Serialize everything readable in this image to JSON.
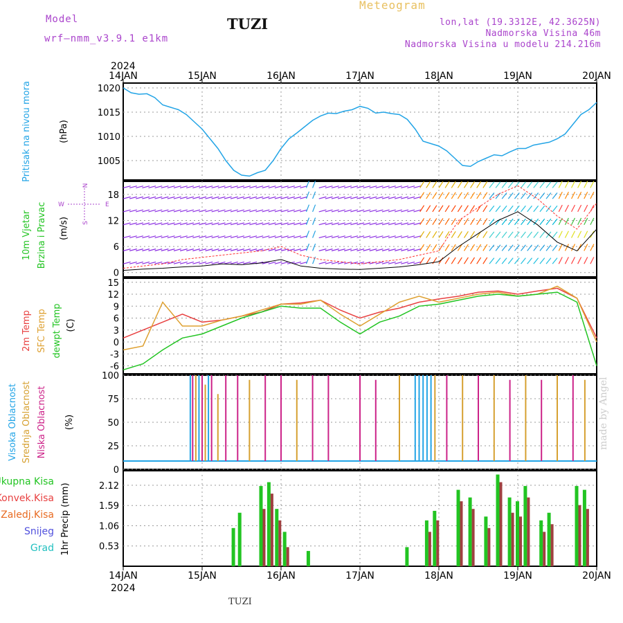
{
  "header": {
    "model_label": "Model",
    "model_name": "wrf–nmm_v3.9.1  e1km",
    "station": "TUZI",
    "title": "Meteogram",
    "lonlat": "lon,lat (19.3312E, 42.3625N)",
    "elevation": "Nadmorska Visina 46m",
    "model_elevation": "Nadmorska Visina u modelu 214.216m"
  },
  "footer": {
    "station": "TUZI",
    "watermark": "made by Angel"
  },
  "colors": {
    "pressure": "#22a4e6",
    "wind_title": "#22c422",
    "wind_dir": "#aa44cc",
    "temp2m": "#e84040",
    "sfc": "#dea030",
    "dewpt": "#22c422",
    "high": "#22a4e6",
    "mid": "#d6a030",
    "low": "#cc2288",
    "total": "#22c422",
    "konv": "#e84040",
    "zaledj": "#e86a20",
    "snijeg": "#5050dd",
    "grad": "#22c0c0"
  },
  "chart_data": [
    {
      "type": "line",
      "panel": "pressure",
      "ylabel_left": "Pritisak na nivou mora",
      "unit": "(hPa)",
      "ylim": [
        1001,
        1021
      ],
      "yticks": [
        "1005",
        "1010",
        "1015",
        "1020"
      ],
      "xticks_top": [
        "14JAN",
        "15JAN",
        "16JAN",
        "17JAN",
        "18JAN",
        "19JAN",
        "20JAN"
      ],
      "year": "2024",
      "x": [
        0,
        0.1,
        0.2,
        0.3,
        0.4,
        0.5,
        0.6,
        0.7,
        0.8,
        0.9,
        1.0,
        1.1,
        1.2,
        1.3,
        1.4,
        1.5,
        1.6,
        1.7,
        1.8,
        1.9,
        2.0,
        2.1,
        2.2,
        2.3,
        2.4,
        2.5,
        2.6,
        2.7,
        2.8,
        2.9,
        3.0,
        3.1,
        3.2,
        3.3,
        3.4,
        3.5,
        3.6,
        3.7,
        3.8,
        3.9,
        4.0,
        4.1,
        4.2,
        4.3,
        4.4,
        4.5,
        4.6,
        4.7,
        4.8,
        4.9,
        5.0,
        5.1,
        5.2,
        5.3,
        5.4,
        5.5,
        5.6,
        5.7,
        5.8,
        5.9,
        6.0
      ],
      "values": [
        1020,
        1019,
        1018.7,
        1018.8,
        1018,
        1016.5,
        1016,
        1015.5,
        1014.5,
        1013,
        1011.5,
        1009.5,
        1007.5,
        1005,
        1003,
        1002,
        1001.8,
        1002.5,
        1003,
        1005,
        1007.5,
        1009.5,
        1010.7,
        1012,
        1013.3,
        1014.2,
        1014.8,
        1014.7,
        1015.2,
        1015.5,
        1016.2,
        1015.8,
        1014.8,
        1015,
        1014.7,
        1014.5,
        1013.5,
        1011.5,
        1009,
        1008.5,
        1008,
        1007,
        1005.5,
        1004,
        1003.8,
        1004.8,
        1005.5,
        1006.2,
        1006,
        1006.8,
        1007.5,
        1007.5,
        1008.2,
        1008.5,
        1008.8,
        1009.5,
        1010.5,
        1012.5,
        1014.5,
        1015.5,
        1017
      ]
    },
    {
      "type": "barbs",
      "panel": "wind",
      "ylabel_left": [
        "10m Vjetar",
        "Brzina i Pravac"
      ],
      "unit": "(m/s)",
      "compass": {
        "n": "N",
        "s": "S",
        "e": "E",
        "w": "W"
      },
      "ylim": [
        -1,
        21
      ],
      "yticks": [
        "0",
        "6",
        "12",
        "18"
      ],
      "x": [
        0,
        0.25,
        0.5,
        0.75,
        1.0,
        1.25,
        1.5,
        1.75,
        2.0,
        2.25,
        2.5,
        2.75,
        3.0,
        3.25,
        3.5,
        3.75,
        4.0,
        4.25,
        4.5,
        4.75,
        5.0,
        5.25,
        5.5,
        5.75,
        6.0
      ],
      "speed": [
        0.5,
        0.8,
        1.0,
        1.3,
        1.5,
        2.0,
        1.8,
        2.2,
        3.0,
        1.5,
        1.0,
        0.8,
        0.7,
        1.0,
        1.3,
        1.8,
        2.5,
        6,
        9,
        12,
        14,
        11,
        7,
        5,
        10
      ],
      "gust": [
        1,
        1.5,
        2,
        3,
        3.5,
        4,
        4.5,
        5,
        6,
        4,
        3,
        2.5,
        2,
        2.5,
        3,
        4,
        5,
        12,
        15,
        18,
        20,
        17,
        13,
        10,
        16
      ]
    },
    {
      "type": "line",
      "panel": "temperature",
      "ylabel_left": [
        "2m Temp",
        "SFC Temp",
        "dewpt Temp"
      ],
      "unit": "(C)",
      "ylim": [
        -8,
        16
      ],
      "yticks": [
        "-6",
        "-3",
        "0",
        "3",
        "6",
        "9",
        "12",
        "15"
      ],
      "x": [
        0,
        0.25,
        0.5,
        0.75,
        1.0,
        1.25,
        1.5,
        1.75,
        2.0,
        2.25,
        2.5,
        2.75,
        3.0,
        3.25,
        3.5,
        3.75,
        4.0,
        4.25,
        4.5,
        4.75,
        5.0,
        5.25,
        5.5,
        5.75,
        6.0
      ],
      "series": [
        {
          "name": "2m Temp",
          "values": [
            1,
            3,
            5,
            7,
            5,
            5.5,
            6.5,
            7.5,
            9.5,
            9.8,
            10.5,
            8,
            6,
            7.5,
            8.5,
            10,
            10.8,
            11.5,
            12.5,
            12.8,
            12,
            12.8,
            13.5,
            11,
            1
          ]
        },
        {
          "name": "SFC Temp",
          "values": [
            -2,
            -1,
            10,
            4,
            4,
            5.5,
            6.5,
            8,
            9.5,
            9.5,
            10.5,
            7,
            4,
            7,
            10,
            11.5,
            10,
            11,
            12,
            12.5,
            11.5,
            12,
            14,
            11,
            0
          ]
        },
        {
          "name": "dewpt Temp",
          "values": [
            -7,
            -5.5,
            -2,
            1,
            2,
            4,
            6,
            7.5,
            9,
            8.5,
            8.5,
            5,
            2,
            5,
            6.5,
            9,
            9.5,
            10.5,
            11.5,
            12,
            11.5,
            12,
            12.5,
            10,
            -6
          ]
        }
      ]
    },
    {
      "type": "bar",
      "panel": "clouds",
      "ylabel_left": [
        "Visoka Oblacnost",
        "Srednja Oblacnost",
        "Niska Oblacnost"
      ],
      "unit": "(%)",
      "ylim": [
        0,
        100
      ],
      "yticks": [
        "0",
        "25",
        "50",
        "75",
        "100"
      ],
      "bars": [
        {
          "x": 0.85,
          "v": 100,
          "c": "high"
        },
        {
          "x": 0.88,
          "v": 100,
          "c": "low"
        },
        {
          "x": 0.92,
          "v": 100,
          "c": "mid"
        },
        {
          "x": 0.96,
          "v": 100,
          "c": "high"
        },
        {
          "x": 1.0,
          "v": 100,
          "c": "low"
        },
        {
          "x": 1.04,
          "v": 90,
          "c": "mid"
        },
        {
          "x": 1.08,
          "v": 100,
          "c": "high"
        },
        {
          "x": 1.12,
          "v": 100,
          "c": "low"
        },
        {
          "x": 1.2,
          "v": 80,
          "c": "mid"
        },
        {
          "x": 1.3,
          "v": 100,
          "c": "low"
        },
        {
          "x": 1.45,
          "v": 100,
          "c": "low"
        },
        {
          "x": 1.6,
          "v": 95,
          "c": "mid"
        },
        {
          "x": 1.8,
          "v": 100,
          "c": "low"
        },
        {
          "x": 2.0,
          "v": 100,
          "c": "low"
        },
        {
          "x": 2.2,
          "v": 95,
          "c": "mid"
        },
        {
          "x": 2.4,
          "v": 100,
          "c": "low"
        },
        {
          "x": 2.6,
          "v": 100,
          "c": "low"
        },
        {
          "x": 3.0,
          "v": 100,
          "c": "low"
        },
        {
          "x": 3.2,
          "v": 95,
          "c": "low"
        },
        {
          "x": 3.5,
          "v": 100,
          "c": "mid"
        },
        {
          "x": 3.7,
          "v": 100,
          "c": "high"
        },
        {
          "x": 3.75,
          "v": 100,
          "c": "high"
        },
        {
          "x": 3.8,
          "v": 100,
          "c": "high"
        },
        {
          "x": 3.85,
          "v": 100,
          "c": "high"
        },
        {
          "x": 3.9,
          "v": 100,
          "c": "high"
        },
        {
          "x": 3.95,
          "v": 100,
          "c": "mid"
        },
        {
          "x": 4.1,
          "v": 100,
          "c": "low"
        },
        {
          "x": 4.3,
          "v": 100,
          "c": "mid"
        },
        {
          "x": 4.5,
          "v": 100,
          "c": "low"
        },
        {
          "x": 4.7,
          "v": 100,
          "c": "mid"
        },
        {
          "x": 4.9,
          "v": 95,
          "c": "low"
        },
        {
          "x": 5.1,
          "v": 100,
          "c": "mid"
        },
        {
          "x": 5.3,
          "v": 95,
          "c": "low"
        },
        {
          "x": 5.5,
          "v": 100,
          "c": "mid"
        },
        {
          "x": 5.7,
          "v": 100,
          "c": "low"
        },
        {
          "x": 5.85,
          "v": 95,
          "c": "mid"
        }
      ]
    },
    {
      "type": "bar",
      "panel": "precipitation",
      "ylabel_left": [
        "Ukupna Kisa",
        "Konvek.Kisa",
        "Zaledj.Kisa",
        "Snijeg",
        "Grad"
      ],
      "unit": "1hr Precip (mm)",
      "ylim": [
        0,
        2.5
      ],
      "yticks": [
        "0.53",
        "1.06",
        "1.59",
        "2.12"
      ],
      "xticks_bottom": [
        "14JAN",
        "15JAN",
        "16JAN",
        "17JAN",
        "18JAN",
        "19JAN",
        "20JAN"
      ],
      "year_bottom": "2024",
      "bars": [
        {
          "x": 1.4,
          "total": 1.0,
          "konv": 0
        },
        {
          "x": 1.48,
          "total": 1.4,
          "konv": 0
        },
        {
          "x": 1.75,
          "total": 2.1,
          "konv": 1.5
        },
        {
          "x": 1.85,
          "total": 2.2,
          "konv": 1.9
        },
        {
          "x": 1.95,
          "total": 1.5,
          "konv": 1.2
        },
        {
          "x": 2.05,
          "total": 0.9,
          "konv": 0.5
        },
        {
          "x": 2.35,
          "total": 0.4,
          "konv": 0
        },
        {
          "x": 3.6,
          "total": 0.5,
          "konv": 0
        },
        {
          "x": 3.85,
          "total": 1.2,
          "konv": 0.9
        },
        {
          "x": 3.95,
          "total": 1.45,
          "konv": 1.2
        },
        {
          "x": 4.25,
          "total": 2.0,
          "konv": 1.7
        },
        {
          "x": 4.4,
          "total": 1.8,
          "konv": 1.5
        },
        {
          "x": 4.6,
          "total": 1.3,
          "konv": 1.0
        },
        {
          "x": 4.75,
          "total": 2.4,
          "konv": 2.2
        },
        {
          "x": 4.9,
          "total": 1.8,
          "konv": 1.4
        },
        {
          "x": 5.0,
          "total": 1.7,
          "konv": 1.3
        },
        {
          "x": 5.1,
          "total": 2.1,
          "konv": 1.8
        },
        {
          "x": 5.3,
          "total": 1.2,
          "konv": 0.9
        },
        {
          "x": 5.4,
          "total": 1.4,
          "konv": 1.1
        },
        {
          "x": 5.75,
          "total": 2.1,
          "konv": 1.6
        },
        {
          "x": 5.85,
          "total": 2.0,
          "konv": 1.5
        }
      ]
    }
  ]
}
